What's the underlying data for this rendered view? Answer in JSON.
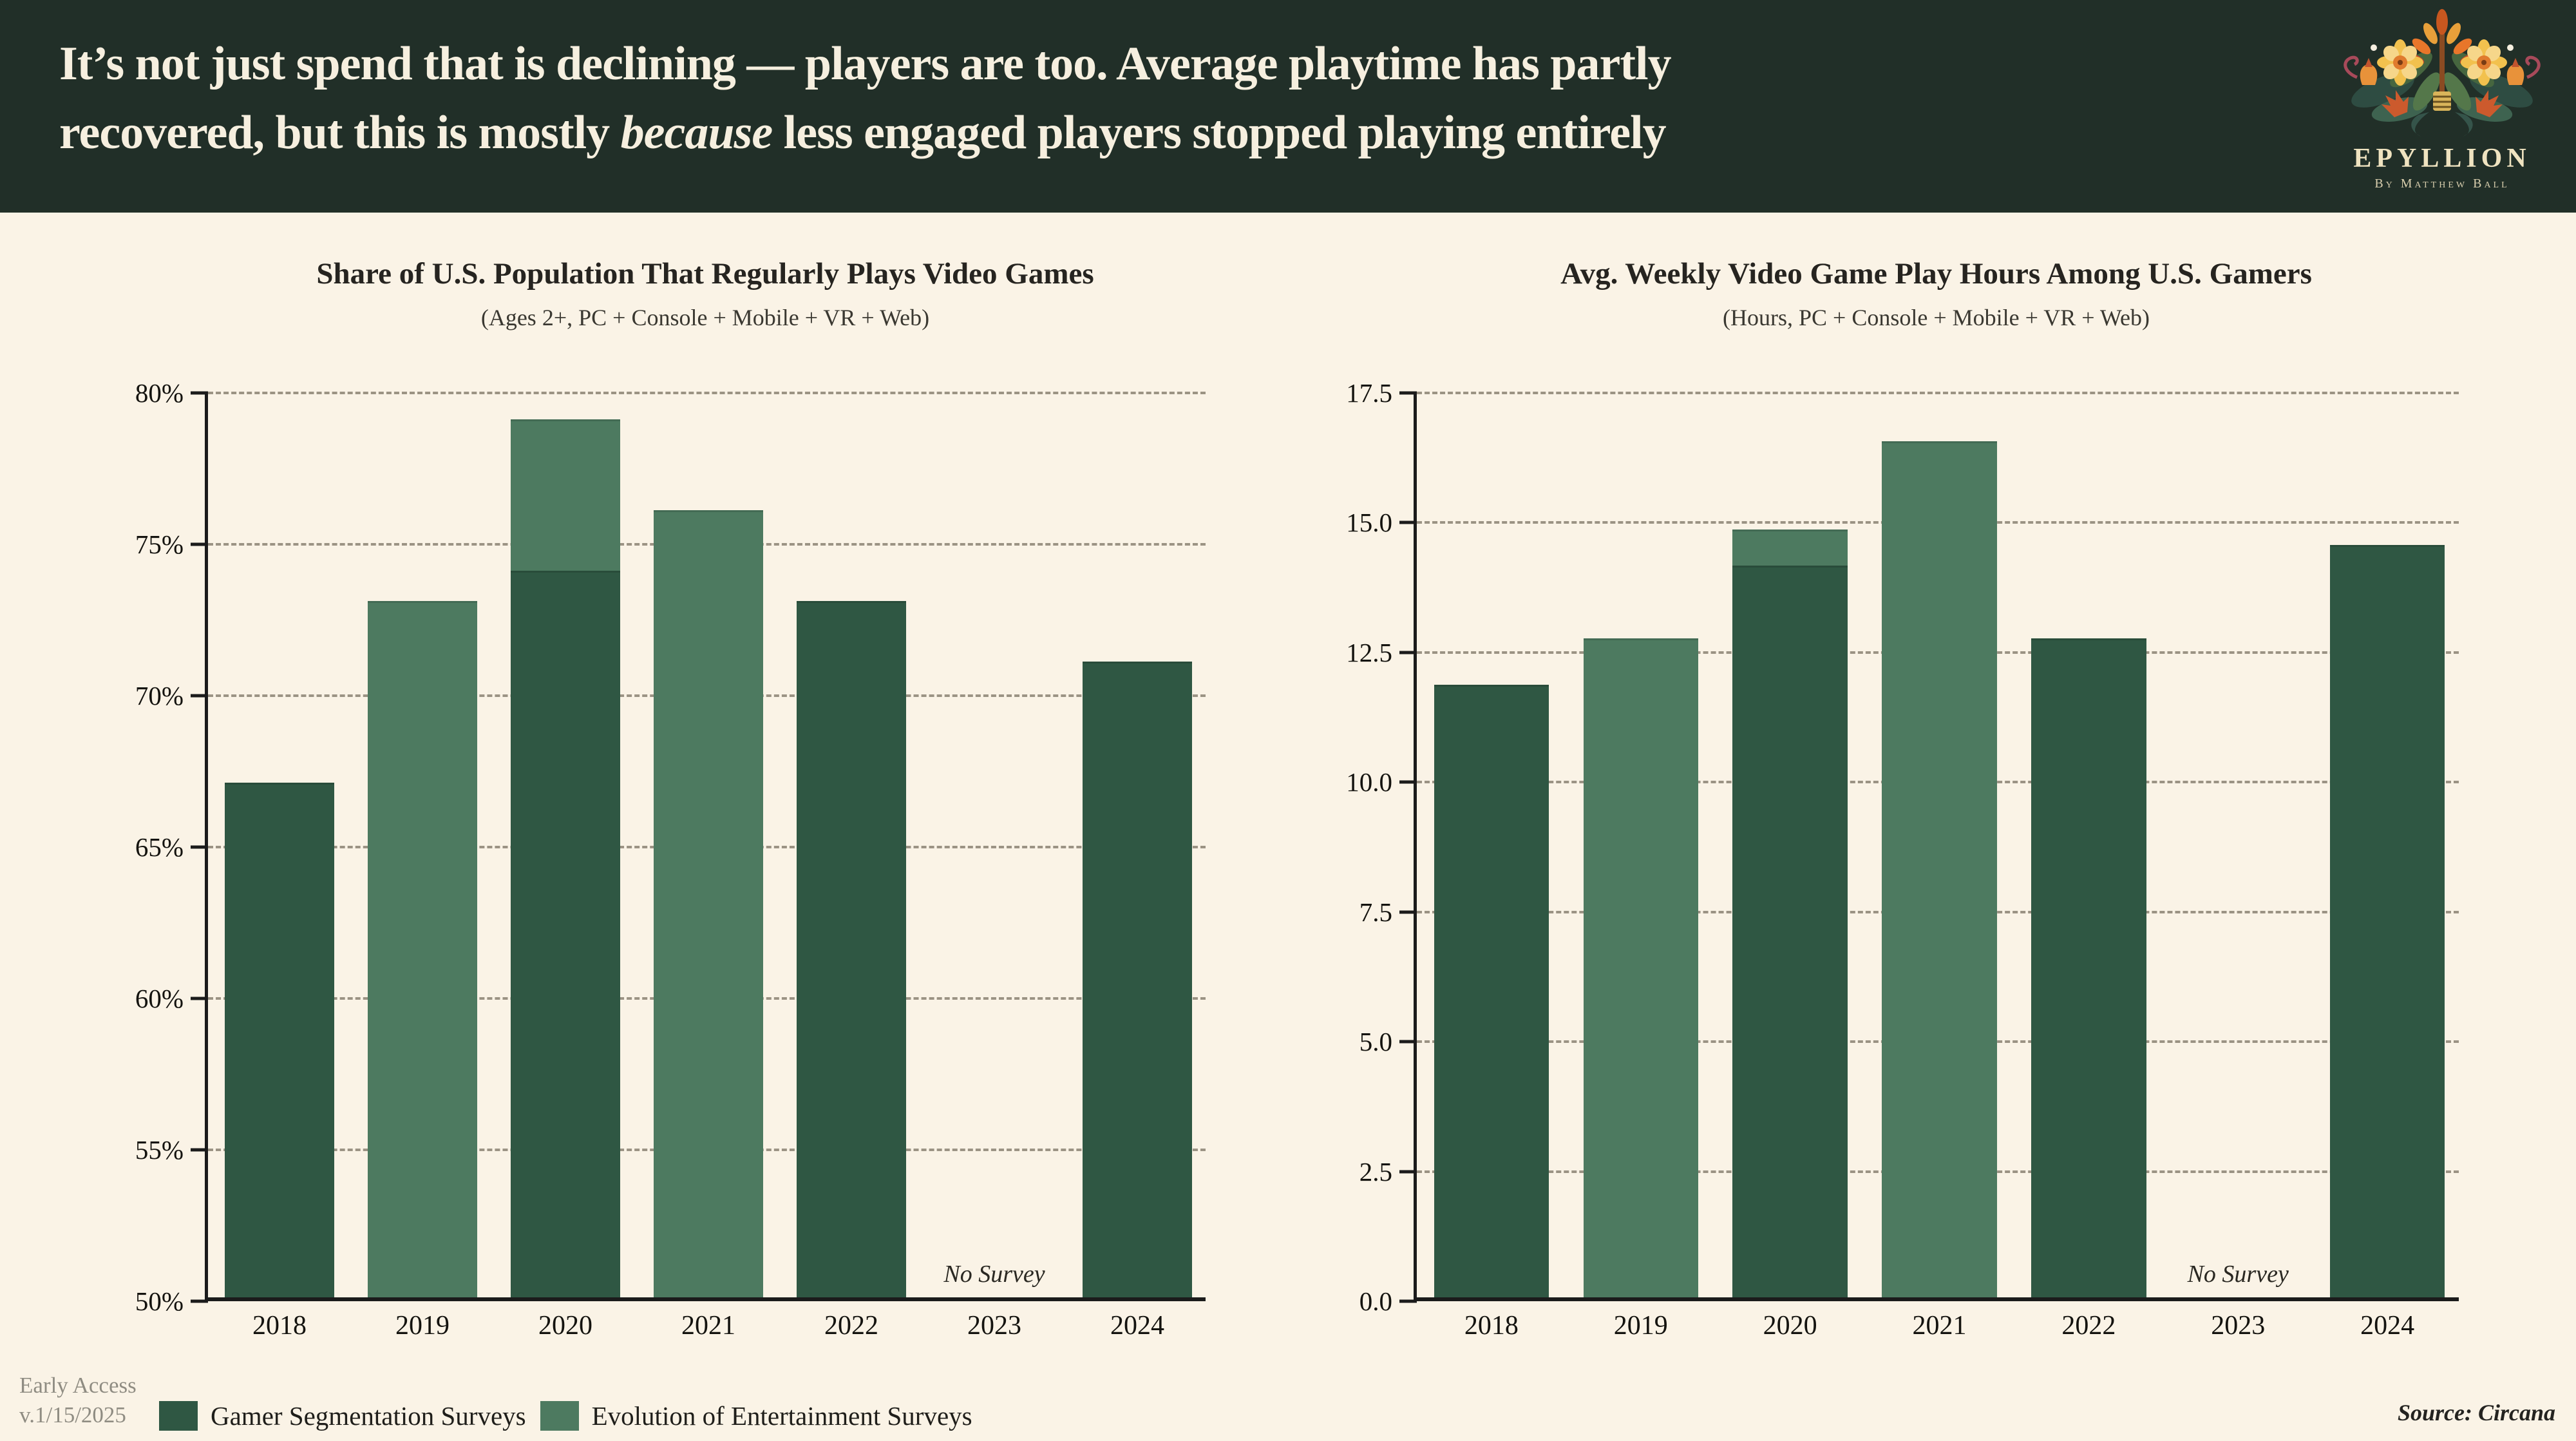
{
  "header": {
    "title_line1": "It’s not just spend that is declining — players are too. Average playtime has partly",
    "title_line2_pre": "recovered, but this is mostly ",
    "title_line2_italic": "because",
    "title_line2_post": " less engaged players stopped playing entirely",
    "logo": {
      "name": "EPYLLION",
      "byline": "By Matthew Ball"
    }
  },
  "colors": {
    "header_bg": "#212f28",
    "header_text": "#f6efdf",
    "page_bg": "#faf3e6",
    "dark_series": "#2f5743",
    "light_series": "#4d7a60",
    "axis": "#1b1b1b",
    "gridline": "#9b9384",
    "muted_text": "#8f8c82",
    "text": "#1d1c1a",
    "logo_text": "#efe3c0"
  },
  "legend": [
    {
      "label": "Gamer Segmentation Surveys",
      "color_key": "dark"
    },
    {
      "label": "Evolution of Entertainment Surveys",
      "color_key": "light"
    }
  ],
  "footer": {
    "version_line1": "Early Access",
    "version_line2": "v.1/15/2025",
    "source": "Source: Circana"
  },
  "chart_data": [
    {
      "type": "bar",
      "title": "Share of U.S. Population That Regularly Plays Video Games",
      "subtitle": "(Ages 2+, PC + Console + Mobile + VR + Web)",
      "ymin": 50,
      "ymax": 80,
      "ylim": [
        50,
        80
      ],
      "grid": true,
      "yticks": [
        {
          "v": 80,
          "label": "80%"
        },
        {
          "v": 75,
          "label": "75%"
        },
        {
          "v": 70,
          "label": "70%"
        },
        {
          "v": 65,
          "label": "65%"
        },
        {
          "v": 60,
          "label": "60%"
        },
        {
          "v": 55,
          "label": "55%"
        },
        {
          "v": 50,
          "label": "50%"
        }
      ],
      "categories": [
        "2018",
        "2019",
        "2020",
        "2021",
        "2022",
        "2023",
        "2024"
      ],
      "series": [
        {
          "name": "Gamer Segmentation Surveys",
          "color_key": "dark",
          "values": [
            67,
            null,
            74,
            null,
            73,
            null,
            71
          ]
        },
        {
          "name": "Evolution of Entertainment Surveys",
          "color_key": "light",
          "values": [
            null,
            73,
            79,
            76,
            null,
            null,
            null
          ]
        }
      ],
      "no_survey": {
        "category": "2023",
        "label": "No Survey"
      }
    },
    {
      "type": "bar",
      "title": "Avg. Weekly Video Game Play Hours Among U.S. Gamers",
      "subtitle": "(Hours, PC + Console + Mobile + VR + Web)",
      "ymin": 0,
      "ymax": 17.5,
      "ylim": [
        0,
        17.5
      ],
      "grid": true,
      "yticks": [
        {
          "v": 17.5,
          "label": "17.5"
        },
        {
          "v": 15,
          "label": "15.0"
        },
        {
          "v": 12.5,
          "label": "12.5"
        },
        {
          "v": 10,
          "label": "10.0"
        },
        {
          "v": 7.5,
          "label": "7.5"
        },
        {
          "v": 5,
          "label": "5.0"
        },
        {
          "v": 2.5,
          "label": "2.5"
        },
        {
          "v": 0,
          "label": "0.0"
        }
      ],
      "categories": [
        "2018",
        "2019",
        "2020",
        "2021",
        "2022",
        "2023",
        "2024"
      ],
      "series": [
        {
          "name": "Gamer Segmentation Surveys",
          "color_key": "dark",
          "values": [
            11.8,
            null,
            14.1,
            null,
            12.7,
            null,
            14.5
          ]
        },
        {
          "name": "Evolution of Entertainment Surveys",
          "color_key": "light",
          "values": [
            null,
            12.7,
            14.8,
            16.5,
            null,
            null,
            null
          ]
        }
      ],
      "no_survey": {
        "category": "2023",
        "label": "No Survey"
      }
    }
  ]
}
